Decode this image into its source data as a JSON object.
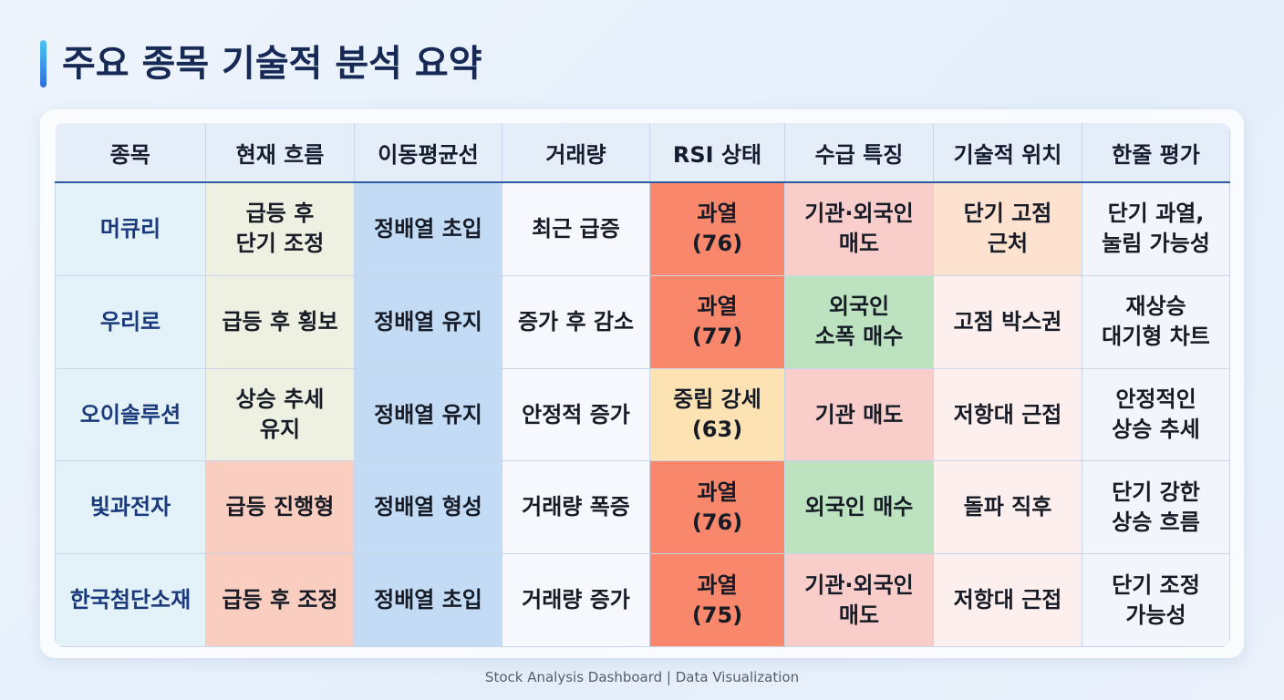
{
  "header": {
    "title": "주요 종목 기술적 분석 요약"
  },
  "table": {
    "columns": [
      "종목",
      "현재 흐름",
      "이동평균선",
      "거래량",
      "RSI 상태",
      "수급 특징",
      "기술적 위치",
      "한줄 평가"
    ],
    "rows": [
      [
        {
          "lines": [
            "머큐리"
          ],
          "color": "#e2f2f8"
        },
        {
          "lines": [
            "급등 후",
            "단기 조정"
          ],
          "color": "#eef1e2"
        },
        {
          "lines": [
            "정배열 초입"
          ],
          "color": "#c3dbf4"
        },
        {
          "lines": [
            "최근 급증"
          ],
          "color": "#f6f8fd"
        },
        {
          "lines": [
            "과열",
            "(76)"
          ],
          "color": "#f8876b"
        },
        {
          "lines": [
            "기관·외국인",
            "매도"
          ],
          "color": "#f8cdca"
        },
        {
          "lines": [
            "단기 고점",
            "근처"
          ],
          "color": "#fce2cf"
        },
        {
          "lines": [
            "단기 과열,",
            "눌림 가능성"
          ],
          "color": "#f2f5fc"
        }
      ],
      [
        {
          "lines": [
            "우리로"
          ],
          "color": "#e2f2f8"
        },
        {
          "lines": [
            "급등 후 횡보"
          ],
          "color": "#eef1e2"
        },
        {
          "lines": [
            "정배열 유지"
          ],
          "color": "#c3dbf4"
        },
        {
          "lines": [
            "증가 후 감소"
          ],
          "color": "#f6f8fd"
        },
        {
          "lines": [
            "과열",
            "(77)"
          ],
          "color": "#f8876b"
        },
        {
          "lines": [
            "외국인",
            "소폭 매수"
          ],
          "color": "#bde2c0"
        },
        {
          "lines": [
            "고점 박스권"
          ],
          "color": "#fcefed"
        },
        {
          "lines": [
            "재상승",
            "대기형 차트"
          ],
          "color": "#f2f5fc"
        }
      ],
      [
        {
          "lines": [
            "오이솔루션"
          ],
          "color": "#e2f2f8"
        },
        {
          "lines": [
            "상승 추세",
            "유지"
          ],
          "color": "#eef1e2"
        },
        {
          "lines": [
            "정배열 유지"
          ],
          "color": "#c3dbf4"
        },
        {
          "lines": [
            "안정적 증가"
          ],
          "color": "#f6f8fd"
        },
        {
          "lines": [
            "중립 강세",
            "(63)"
          ],
          "color": "#fde3b4"
        },
        {
          "lines": [
            "기관 매도"
          ],
          "color": "#f8cdca"
        },
        {
          "lines": [
            "저항대 근접"
          ],
          "color": "#fcefed"
        },
        {
          "lines": [
            "안정적인",
            "상승 추세"
          ],
          "color": "#f2f5fc"
        }
      ],
      [
        {
          "lines": [
            "빛과전자"
          ],
          "color": "#e2f2f8"
        },
        {
          "lines": [
            "급등 진행형"
          ],
          "color": "#f9cdbf"
        },
        {
          "lines": [
            "정배열 형성"
          ],
          "color": "#c3dbf4"
        },
        {
          "lines": [
            "거래량 폭증"
          ],
          "color": "#f6f8fd"
        },
        {
          "lines": [
            "과열",
            "(76)"
          ],
          "color": "#f8876b"
        },
        {
          "lines": [
            "외국인 매수"
          ],
          "color": "#bde2c0"
        },
        {
          "lines": [
            "돌파 직후"
          ],
          "color": "#fcefed"
        },
        {
          "lines": [
            "단기 강한",
            "상승 흐름"
          ],
          "color": "#f2f5fc"
        }
      ],
      [
        {
          "lines": [
            "한국첨단소재"
          ],
          "color": "#e2f2f8"
        },
        {
          "lines": [
            "급등 후 조정"
          ],
          "color": "#f9cdbf"
        },
        {
          "lines": [
            "정배열 초입"
          ],
          "color": "#c3dbf4"
        },
        {
          "lines": [
            "거래량 증가"
          ],
          "color": "#f6f8fd"
        },
        {
          "lines": [
            "과열",
            "(75)"
          ],
          "color": "#f8876b"
        },
        {
          "lines": [
            "기관·외국인",
            "매도"
          ],
          "color": "#f8cdca"
        },
        {
          "lines": [
            "저항대 근접"
          ],
          "color": "#fcefed"
        },
        {
          "lines": [
            "단기 조정",
            "가능성"
          ],
          "color": "#f2f5fc"
        }
      ]
    ]
  },
  "footer": {
    "text": "Stock Analysis Dashboard | Data Visualization"
  }
}
